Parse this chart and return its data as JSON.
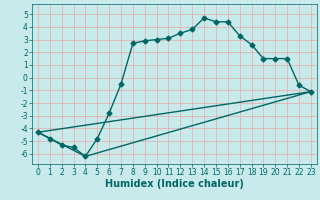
{
  "title": "",
  "xlabel": "Humidex (Indice chaleur)",
  "ylabel": "",
  "xlim": [
    -0.5,
    23.5
  ],
  "ylim": [
    -6.8,
    5.8
  ],
  "xticks": [
    0,
    1,
    2,
    3,
    4,
    5,
    6,
    7,
    8,
    9,
    10,
    11,
    12,
    13,
    14,
    15,
    16,
    17,
    18,
    19,
    20,
    21,
    22,
    23
  ],
  "yticks": [
    -6,
    -5,
    -4,
    -3,
    -2,
    -1,
    0,
    1,
    2,
    3,
    4,
    5
  ],
  "bg_color": "#c8eaea",
  "line_color": "#006666",
  "grid_color": "#e8a8a8",
  "line1_x": [
    0,
    1,
    2,
    3,
    4,
    5,
    6,
    7,
    8,
    9,
    10,
    11,
    12,
    13,
    14,
    15,
    16,
    17,
    18,
    19,
    20,
    21,
    22,
    23
  ],
  "line1_y": [
    -4.3,
    -4.8,
    -5.3,
    -5.5,
    -6.2,
    -4.8,
    -2.8,
    -0.5,
    2.7,
    2.9,
    3.0,
    3.1,
    3.5,
    3.8,
    4.7,
    4.4,
    4.4,
    3.3,
    2.6,
    1.5,
    1.5,
    1.5,
    -0.6,
    -1.1
  ],
  "line2_x": [
    0,
    23
  ],
  "line2_y": [
    -4.3,
    -1.1
  ],
  "line3_x": [
    0,
    4,
    23
  ],
  "line3_y": [
    -4.3,
    -6.2,
    -1.1
  ],
  "marker": "D",
  "markersize": 2.5,
  "linewidth": 1.0,
  "xlabel_fontsize": 7,
  "tick_fontsize": 5.5
}
